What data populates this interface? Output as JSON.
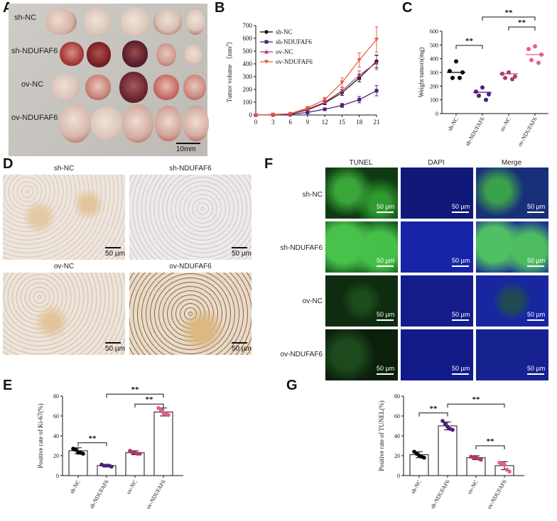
{
  "panels": {
    "A": "A",
    "B": "B",
    "C": "C",
    "D": "D",
    "E": "E",
    "F": "F",
    "G": "G"
  },
  "panelA": {
    "row_labels": [
      "sh-NC",
      "sh-NDUFAF6",
      "ov-NC",
      "ov-NDUFAF6"
    ],
    "scale": "10mm"
  },
  "chartB": {
    "type": "line",
    "ylabel": "Tumor volume （mm",
    "ylabel_sup": "3",
    "ylabel_close": "）",
    "x": [
      0,
      3,
      6,
      9,
      12,
      15,
      18,
      21
    ],
    "xticks": [
      "0",
      "3",
      "6",
      "9",
      "12",
      "15",
      "18",
      "21"
    ],
    "yticks": [
      "0",
      "100",
      "200",
      "300",
      "400",
      "500",
      "600",
      "700"
    ],
    "ylim": [
      0,
      700
    ],
    "series": [
      {
        "name": "sh-NC",
        "color": "#000000",
        "marker": "circle",
        "values": [
          0,
          3,
          8,
          40,
          95,
          175,
          290,
          420
        ],
        "err": [
          0,
          2,
          4,
          8,
          15,
          22,
          30,
          50
        ]
      },
      {
        "name": "sh-NDUFAF6",
        "color": "#4b1f7a",
        "marker": "square",
        "values": [
          0,
          2,
          5,
          20,
          45,
          75,
          120,
          190
        ],
        "err": [
          0,
          2,
          3,
          6,
          10,
          15,
          25,
          40
        ]
      },
      {
        "name": "ov-NC",
        "color": "#b0386e",
        "marker": "triangle",
        "values": [
          0,
          3,
          8,
          45,
          100,
          190,
          310,
          410
        ],
        "err": [
          0,
          2,
          4,
          8,
          15,
          22,
          35,
          55
        ]
      },
      {
        "name": "ov-NDUFAF6",
        "color": "#e4573a",
        "marker": "triangle-down",
        "values": [
          0,
          4,
          10,
          55,
          120,
          255,
          430,
          590
        ],
        "err": [
          0,
          2,
          5,
          10,
          18,
          35,
          55,
          100
        ]
      }
    ]
  },
  "chartC": {
    "type": "scatter",
    "ylabel": "Weight tumors(mg)",
    "yticks": [
      "0",
      "100",
      "200",
      "300",
      "400",
      "500",
      "600"
    ],
    "ylim": [
      0,
      600
    ],
    "categories": [
      "sh-NC",
      "sh-NDUFAF6",
      "ov-NC",
      "ov-NDUFAF6"
    ],
    "colors": [
      "#000000",
      "#4b1f7a",
      "#b0386e",
      "#e85d8a"
    ],
    "points": [
      [
        380,
        310,
        300,
        260,
        260
      ],
      [
        190,
        160,
        140,
        130,
        100
      ],
      [
        300,
        290,
        270,
        260,
        250
      ],
      [
        490,
        470,
        430,
        390,
        370
      ]
    ],
    "means": [
      300,
      155,
      290,
      430
    ],
    "sig": [
      "**",
      "**",
      "**"
    ]
  },
  "panelD": {
    "titles": [
      "sh-NC",
      "sh-NDUFAF6",
      "ov-NC",
      "ov-NDUFAF6"
    ],
    "scale": "50 µm"
  },
  "panelF": {
    "columns": [
      "TUNEL",
      "DAPI",
      "Merge"
    ],
    "rows": [
      "sh-NC",
      "sh-NDUFAF6",
      "ov-NC",
      "ov-NDUFAF6"
    ],
    "scale": "50 µm"
  },
  "chartE": {
    "type": "bar",
    "ylabel": "Positive rate of Ki-67(%)",
    "yticks": [
      "0",
      "20",
      "40",
      "60",
      "80"
    ],
    "ylim": [
      0,
      80
    ],
    "categories": [
      "sh-NC",
      "sh-NDUFAF6",
      "ov-NC",
      "ov-NDUFAF6"
    ],
    "values": [
      25,
      10,
      23,
      64
    ],
    "err": [
      3,
      1,
      2,
      4
    ],
    "colors": [
      "#000000",
      "#4b1f7a",
      "#b0386e",
      "#e85d8a"
    ],
    "points": [
      [
        27,
        26,
        23,
        23,
        22
      ],
      [
        11,
        10,
        10,
        10,
        9
      ],
      [
        25,
        23,
        23,
        22,
        22
      ],
      [
        68,
        66,
        63,
        62,
        61
      ]
    ],
    "sig": [
      "**",
      "**",
      "**"
    ]
  },
  "chartG": {
    "type": "bar",
    "ylabel": "Positive rate of TUNEL(%)",
    "yticks": [
      "0",
      "20",
      "40",
      "60",
      "80"
    ],
    "ylim": [
      0,
      80
    ],
    "categories": [
      "sh-NC",
      "sh-NDUFAF6",
      "ov-NC",
      "ov-NDUFAF6"
    ],
    "values": [
      21,
      50,
      18,
      10
    ],
    "err": [
      3,
      4,
      2,
      4
    ],
    "colors": [
      "#000000",
      "#4b1f7a",
      "#b0386e",
      "#e85d8a"
    ],
    "points": [
      [
        24,
        22,
        20,
        19,
        18
      ],
      [
        55,
        52,
        49,
        47,
        46
      ],
      [
        19,
        18,
        18,
        17,
        16
      ],
      [
        13,
        12,
        11,
        6,
        4
      ]
    ],
    "sig": [
      "**",
      "**",
      "**"
    ]
  }
}
